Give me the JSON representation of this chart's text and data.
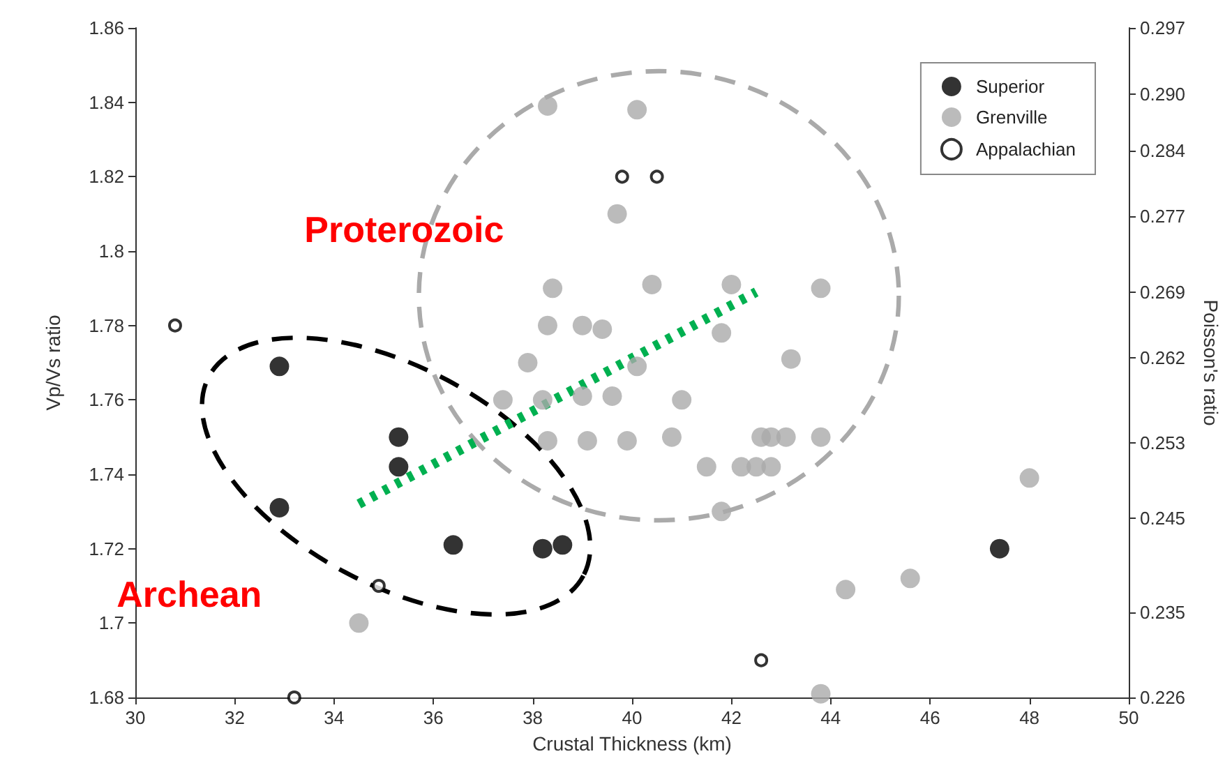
{
  "chart_data": {
    "type": "scatter",
    "xlabel": "Crustal Thickness (km)",
    "ylabel": "Vp/Vs ratio",
    "y2label": "Poisson's ratio",
    "xlim": [
      30,
      50
    ],
    "xticks": [
      30,
      32,
      34,
      36,
      38,
      40,
      42,
      44,
      46,
      48,
      50
    ],
    "ylim": [
      1.68,
      1.86
    ],
    "yticks": [
      1.68,
      1.7,
      1.72,
      1.74,
      1.76,
      1.78,
      1.8,
      1.82,
      1.84,
      1.86
    ],
    "y2lim": [
      0.226,
      0.297
    ],
    "y2ticks": [
      0.226,
      0.235,
      0.245,
      0.253,
      0.262,
      0.269,
      0.277,
      0.284,
      {
        "value": 0.29,
        "label": "0.290"
      },
      0.297
    ],
    "grid": false,
    "legend": "top right",
    "marker": "circle",
    "annotations": [
      "Proterozoic",
      "Archean"
    ],
    "series": [
      {
        "name": "Superior",
        "color": "#000000",
        "x": [
          32.9,
          32.9,
          35.3,
          35.3,
          36.4,
          38.2,
          38.6,
          47.4
        ],
        "values": [
          1.769,
          1.731,
          1.75,
          1.742,
          1.721,
          1.72,
          1.721,
          1.72
        ]
      },
      {
        "name": "Grenville",
        "color": "#aaaaaa",
        "x": [
          38.3,
          40.1,
          39.7,
          38.4,
          40.4,
          42.0,
          43.8,
          38.3,
          39.0,
          39.4,
          41.8,
          37.9,
          40.1,
          43.2,
          37.4,
          38.2,
          39.0,
          39.6,
          41.0,
          38.3,
          39.1,
          39.9,
          40.8,
          42.6,
          42.8,
          43.1,
          43.8,
          41.5,
          42.2,
          42.5,
          42.8,
          41.8,
          34.5,
          48.0,
          45.6,
          44.3,
          43.8
        ],
        "values": [
          1.839,
          1.838,
          1.81,
          1.79,
          1.791,
          1.791,
          1.79,
          1.78,
          1.78,
          1.779,
          1.778,
          1.77,
          1.769,
          1.771,
          1.76,
          1.76,
          1.761,
          1.761,
          1.76,
          1.749,
          1.749,
          1.749,
          1.75,
          1.75,
          1.75,
          1.75,
          1.75,
          1.742,
          1.742,
          1.742,
          1.742,
          1.73,
          1.7,
          1.739,
          1.712,
          1.709,
          1.681
        ]
      },
      {
        "name": "Appalachian",
        "color": "#000000",
        "marker": "emptyCircle",
        "x": [
          30.8,
          34.9,
          33.2,
          39.8,
          40.5,
          42.6
        ],
        "values": [
          1.78,
          1.71,
          1.68,
          1.82,
          1.82,
          1.69
        ]
      },
      {
        "type": "line",
        "color": "#00b050",
        "line_style": "dotted",
        "marker": "none",
        "x": [
          34.5,
          42.5
        ],
        "values": [
          1.732,
          1.789
        ]
      }
    ]
  }
}
